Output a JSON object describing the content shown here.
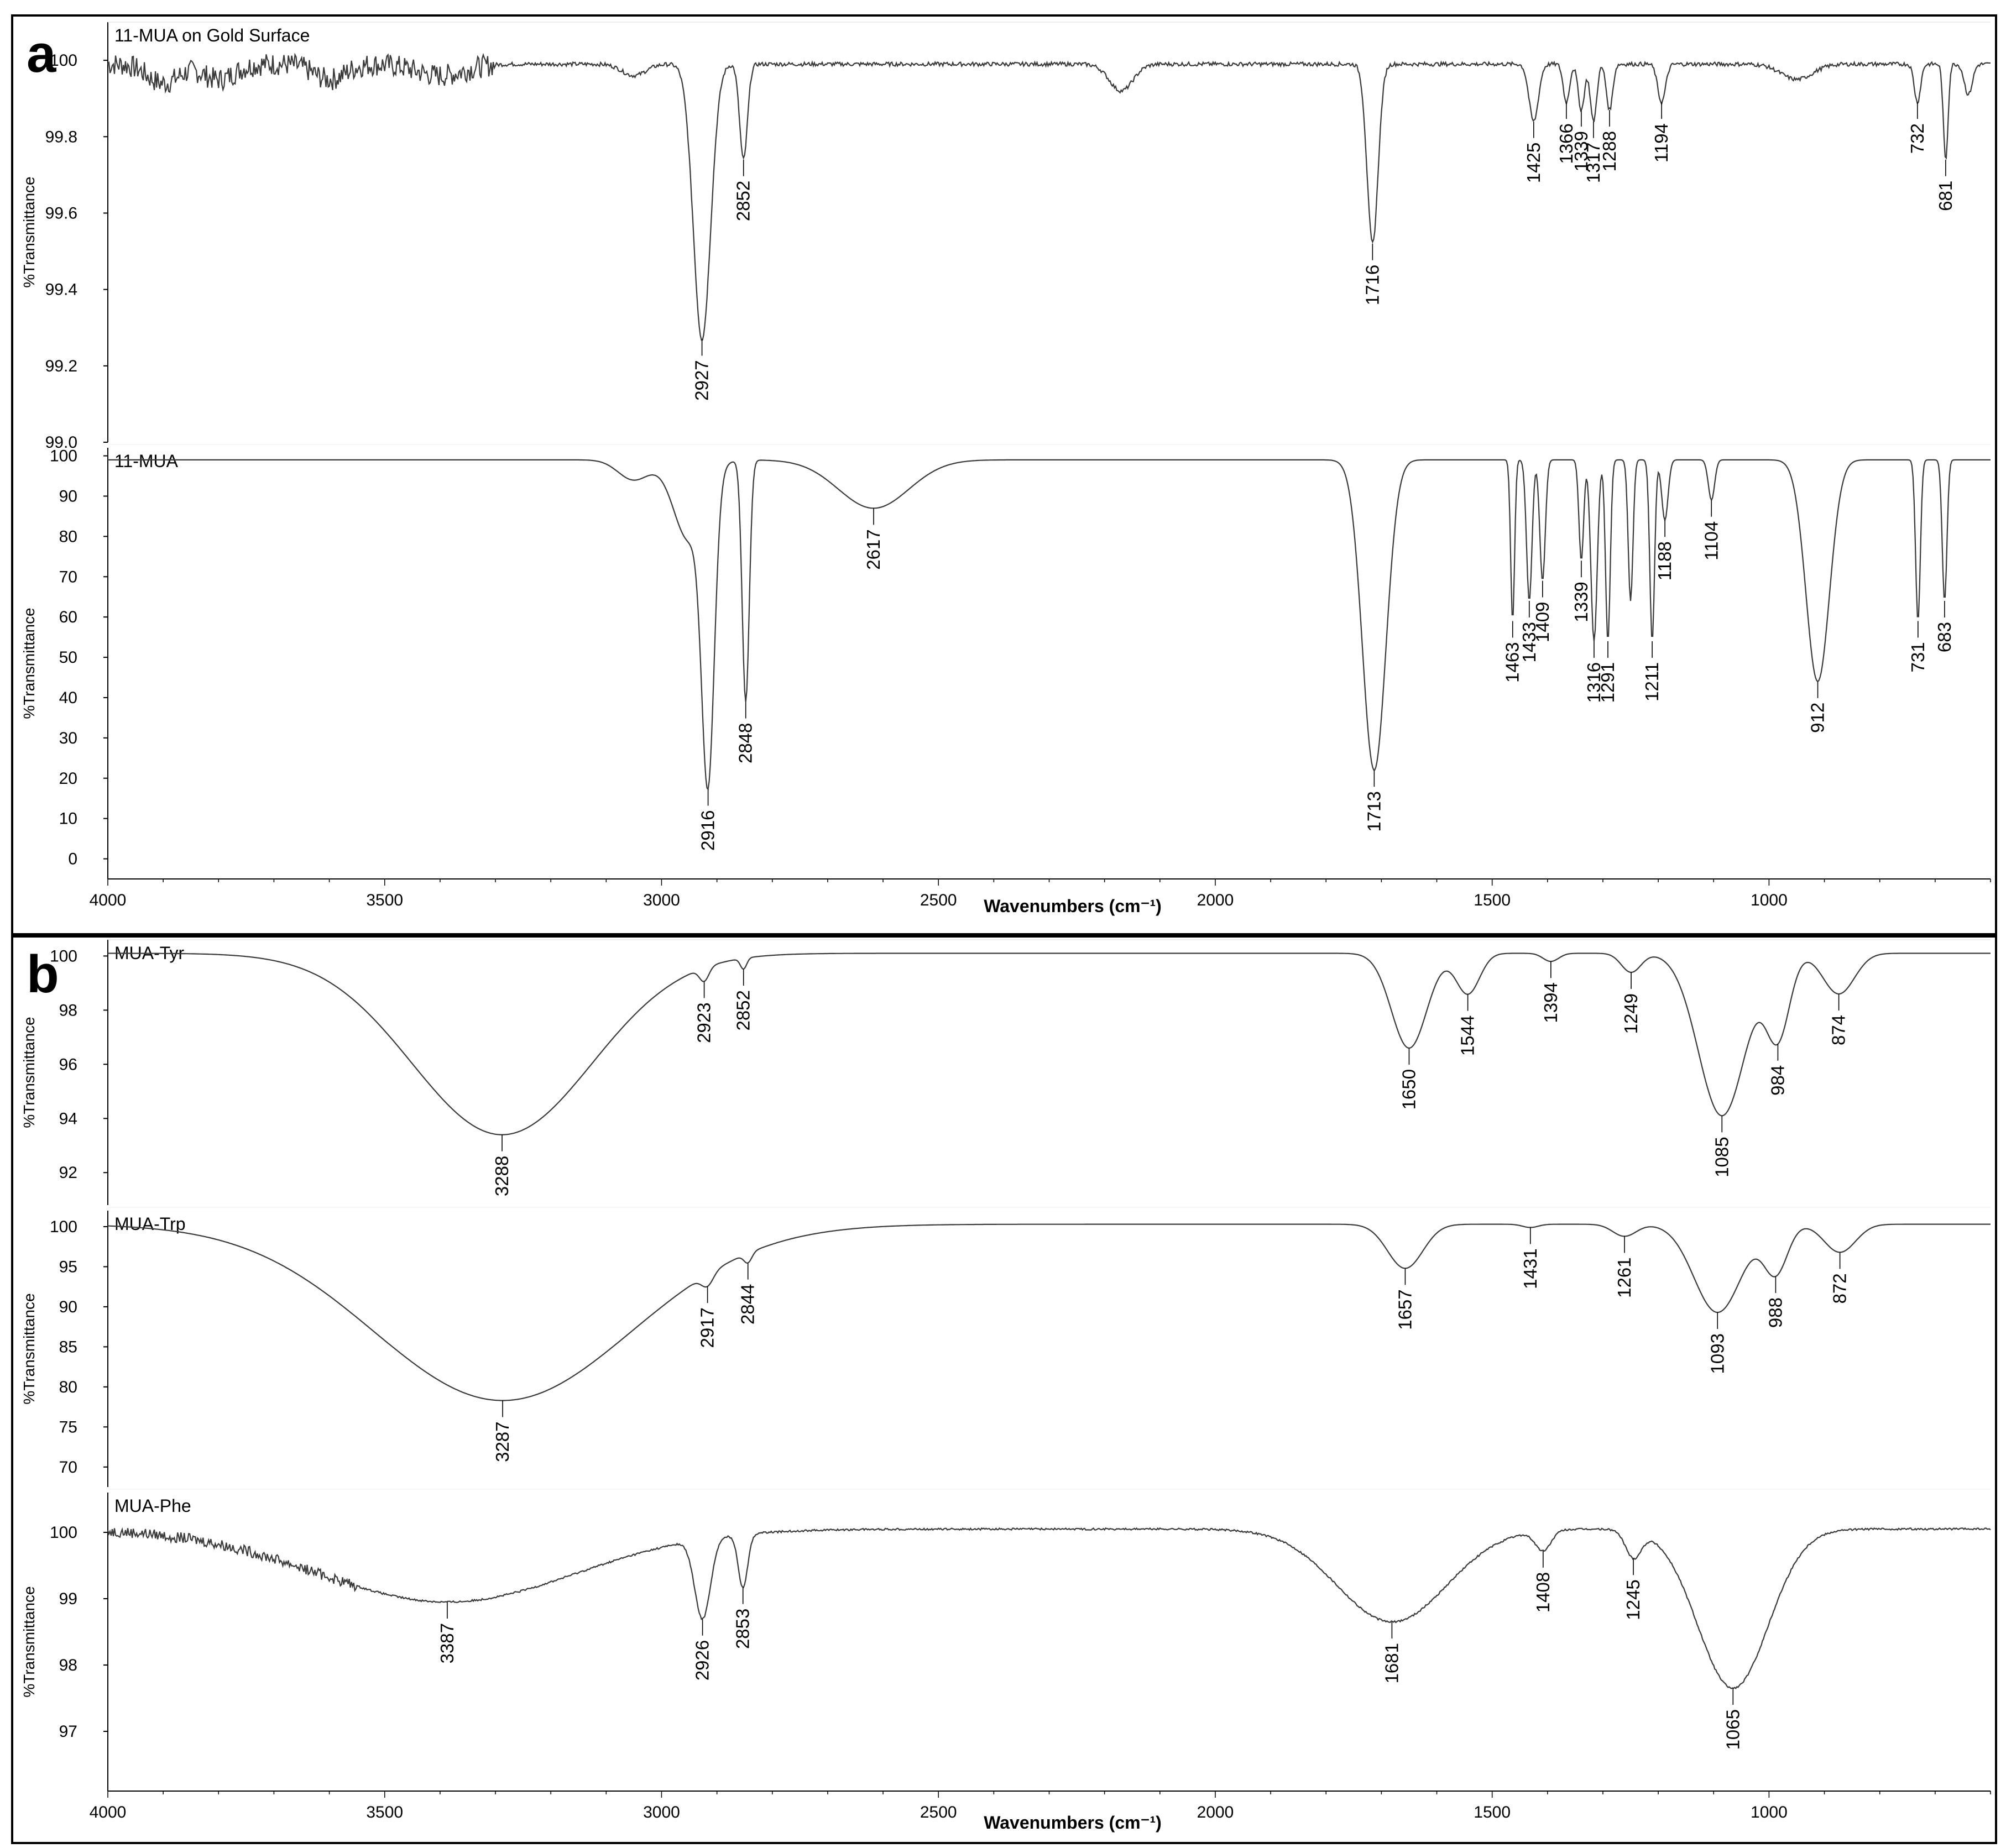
{
  "colors": {
    "trace": "#3a3a3a",
    "frame": "#000000",
    "background": "#ffffff"
  },
  "panels": [
    {
      "letter": "a",
      "xlabel": "Wavenumbers (cm⁻¹)",
      "xticks": [
        4000,
        3500,
        3000,
        2500,
        2000,
        1500,
        1000
      ]
    },
    {
      "letter": "b",
      "xlabel": "Wavenumbers (cm⁻¹)",
      "xticks": [
        4000,
        3500,
        3000,
        2500,
        2000,
        1500,
        1000
      ]
    }
  ],
  "chart_data": [
    {
      "type": "line",
      "panel": "a",
      "name": "11-MUA on Gold Surface",
      "ylabel": "%Transmittance",
      "xlim": [
        4000,
        600
      ],
      "ylim": [
        99.0,
        100.1
      ],
      "yticks": [
        100,
        99.8,
        99.6,
        99.4,
        99.2,
        99.0
      ],
      "ytick_labels": [
        "100",
        "99.8",
        "99.6",
        "99.4",
        "99.2",
        "99.0"
      ],
      "baseline": 99.99,
      "noise": 0.03,
      "noise_cutoff": 3300,
      "bands": [
        [
          3900,
          0.05,
          40
        ],
        [
          3800,
          0.04,
          40
        ],
        [
          3600,
          0.04,
          40
        ],
        [
          3400,
          0.03,
          60
        ],
        [
          3050,
          0.03,
          30
        ],
        [
          2927,
          0.72,
          22
        ],
        [
          2852,
          0.25,
          10
        ],
        [
          2170,
          0.07,
          30
        ],
        [
          1716,
          0.47,
          14
        ],
        [
          1425,
          0.15,
          12
        ],
        [
          1366,
          0.1,
          8
        ],
        [
          1339,
          0.12,
          8
        ],
        [
          1317,
          0.15,
          8
        ],
        [
          1288,
          0.12,
          8
        ],
        [
          1194,
          0.1,
          10
        ],
        [
          950,
          0.04,
          40
        ],
        [
          732,
          0.1,
          8
        ],
        [
          681,
          0.25,
          6
        ],
        [
          640,
          0.08,
          10
        ]
      ],
      "peaks": [
        2927,
        2852,
        1716,
        1425,
        1366,
        1339,
        1317,
        1288,
        1194,
        732,
        681
      ]
    },
    {
      "type": "line",
      "panel": "a",
      "name": "11-MUA",
      "ylabel": "%Transmittance",
      "xlim": [
        4000,
        600
      ],
      "ylim": [
        -5,
        102
      ],
      "yticks": [
        100,
        90,
        80,
        70,
        60,
        50,
        40,
        30,
        20,
        10,
        0
      ],
      "ytick_labels": [
        "100",
        "90",
        "80",
        "70",
        "60",
        "50",
        "40",
        "30",
        "20",
        "10",
        "0"
      ],
      "baseline": 99,
      "noise": 0,
      "noise_cutoff": 4000,
      "bands": [
        [
          3050,
          5,
          40
        ],
        [
          2950,
          20,
          40
        ],
        [
          2916,
          72,
          16
        ],
        [
          2848,
          60,
          9
        ],
        [
          2617,
          12,
          90
        ],
        [
          1713,
          77,
          30
        ],
        [
          1463,
          40,
          5
        ],
        [
          1433,
          35,
          7
        ],
        [
          1409,
          30,
          7
        ],
        [
          1339,
          25,
          6
        ],
        [
          1316,
          45,
          8
        ],
        [
          1291,
          45,
          6
        ],
        [
          1250,
          35,
          6
        ],
        [
          1211,
          45,
          6
        ],
        [
          1188,
          15,
          8
        ],
        [
          1104,
          10,
          8
        ],
        [
          912,
          55,
          30
        ],
        [
          731,
          40,
          6
        ],
        [
          683,
          35,
          6
        ]
      ],
      "peaks": [
        2916,
        2848,
        2617,
        1713,
        1463,
        1433,
        1409,
        1339,
        1316,
        1291,
        1211,
        1188,
        1104,
        912,
        731,
        683
      ]
    },
    {
      "type": "line",
      "panel": "b",
      "name": "MUA-Tyr",
      "ylabel": "%Transmittance",
      "xlim": [
        4000,
        600
      ],
      "ylim": [
        90.8,
        100.6
      ],
      "yticks": [
        100,
        98,
        96,
        94,
        92
      ],
      "ytick_labels": [
        "100",
        "98",
        "96",
        "94",
        "92"
      ],
      "baseline": 100.1,
      "noise": 0,
      "noise_cutoff": 4000,
      "bands": [
        [
          3288,
          6.7,
          230
        ],
        [
          2923,
          0.5,
          12
        ],
        [
          2852,
          0.4,
          8
        ],
        [
          1650,
          3.5,
          45
        ],
        [
          1544,
          1.5,
          30
        ],
        [
          1394,
          0.3,
          20
        ],
        [
          1249,
          0.7,
          25
        ],
        [
          1085,
          6.0,
          60
        ],
        [
          984,
          3.0,
          30
        ],
        [
          874,
          1.5,
          40
        ]
      ],
      "peaks": [
        3288,
        2923,
        2852,
        1650,
        1544,
        1394,
        1249,
        1085,
        984,
        874
      ]
    },
    {
      "type": "line",
      "panel": "b",
      "name": "MUA-Trp",
      "ylabel": "%Transmittance",
      "xlim": [
        4000,
        600
      ],
      "ylim": [
        67.5,
        102
      ],
      "yticks": [
        100,
        95,
        90,
        85,
        80,
        75,
        70
      ],
      "ytick_labels": [
        "100",
        "95",
        "90",
        "85",
        "80",
        "75",
        "70"
      ],
      "baseline": 100.3,
      "noise": 0,
      "noise_cutoff": 4000,
      "bands": [
        [
          3287,
          22,
          330
        ],
        [
          2917,
          1.5,
          15
        ],
        [
          2844,
          1.2,
          10
        ],
        [
          1657,
          5.5,
          45
        ],
        [
          1431,
          0.4,
          20
        ],
        [
          1261,
          1.5,
          30
        ],
        [
          1093,
          11,
          60
        ],
        [
          988,
          6,
          30
        ],
        [
          872,
          3.5,
          40
        ]
      ],
      "peaks": [
        3287,
        2917,
        2844,
        1657,
        1431,
        1261,
        1093,
        988,
        872
      ]
    },
    {
      "type": "line",
      "panel": "b",
      "name": "MUA-Phe",
      "ylabel": "%Transmittance",
      "xlim": [
        4000,
        600
      ],
      "ylim": [
        96.1,
        100.6
      ],
      "yticks": [
        100,
        99,
        98,
        97
      ],
      "ytick_labels": [
        "100",
        "99",
        "98",
        "97"
      ],
      "baseline": 100.05,
      "noise": 0.08,
      "noise_cutoff": 3550,
      "bands": [
        [
          3387,
          1.1,
          330
        ],
        [
          2926,
          1.2,
          20
        ],
        [
          2853,
          0.8,
          12
        ],
        [
          1681,
          1.4,
          140
        ],
        [
          1408,
          0.3,
          20
        ],
        [
          1245,
          0.4,
          20
        ],
        [
          1065,
          2.4,
          90
        ]
      ],
      "peaks": [
        3387,
        2926,
        2853,
        1681,
        1408,
        1245,
        1065
      ]
    }
  ]
}
